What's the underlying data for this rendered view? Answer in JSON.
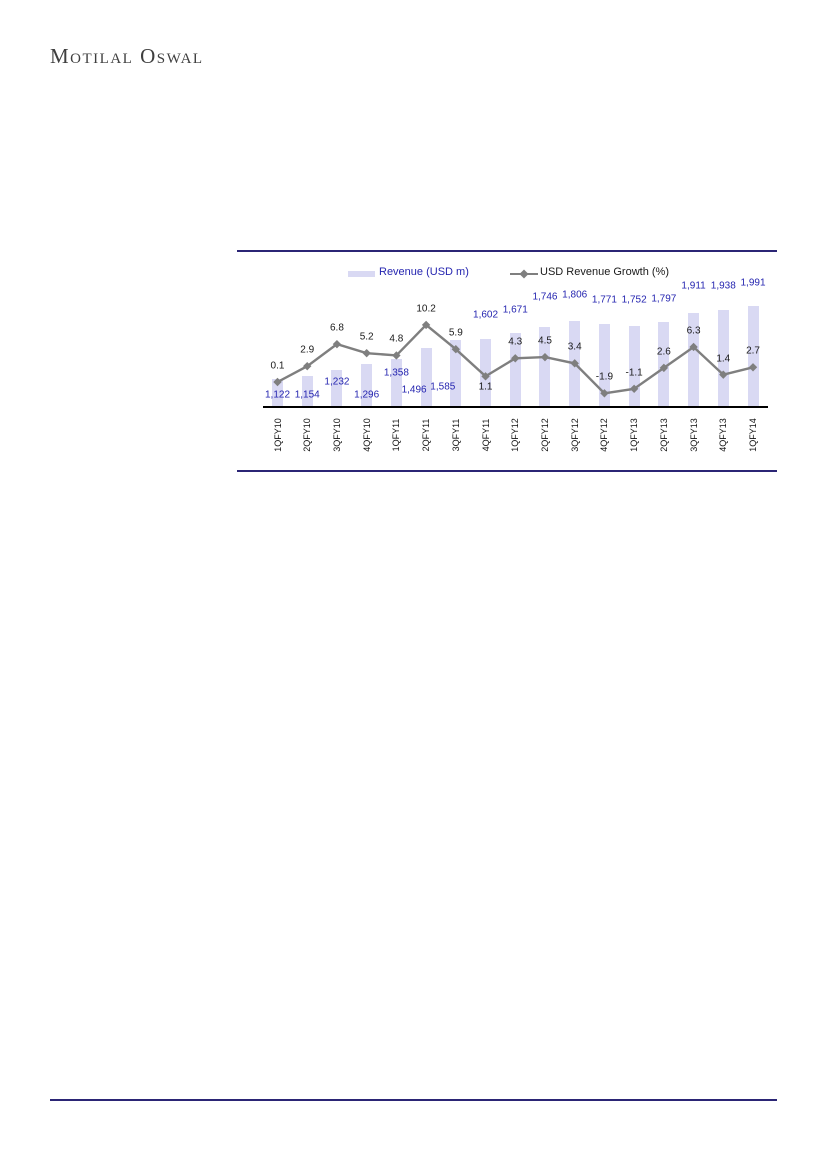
{
  "page": {
    "logo_text": "Motilal Oswal"
  },
  "chart": {
    "legend": {
      "revenue_label": "Revenue (USD m)",
      "growth_label": "USD Revenue Growth (%)"
    },
    "colors": {
      "bar_fill": "#d9d9f3",
      "bar_label": "#2525b0",
      "line": "#7f7f7f",
      "line_label": "#1a1a1a",
      "rule": "#2b2575",
      "axis_line": "#000000",
      "tick_label": "#111111"
    }
  },
  "chart_data": {
    "type": "bar",
    "subtype": "bar-line-combo",
    "title": "",
    "xlabel": "",
    "ylabel": "",
    "legend_position": "top",
    "value_axis_visible": false,
    "categories": [
      "1QFY10",
      "2QFY10",
      "3QFY10",
      "4QFY10",
      "1QFY11",
      "2QFY11",
      "3QFY11",
      "4QFY11",
      "1QFY12",
      "2QFY12",
      "3QFY12",
      "4QFY12",
      "1QFY13",
      "2QFY13",
      "3QFY13",
      "4QFY13",
      "1QFY14"
    ],
    "series": [
      {
        "name": "Revenue (USD m)",
        "type": "bar",
        "values": [
          1122,
          1154,
          1232,
          1296,
          1358,
          1496,
          1585,
          1602,
          1671,
          1746,
          1806,
          1771,
          1752,
          1797,
          1911,
          1938,
          1991
        ],
        "labels": [
          "1,122",
          "1,154",
          "1,232",
          "1,296",
          "1,358",
          "1,496",
          "1,585",
          "1,602",
          "1,671",
          "1,746",
          "1,806",
          "1,771",
          "1,752",
          "1,797",
          "1,911",
          "1,938",
          "1,991"
        ]
      },
      {
        "name": "USD Revenue Growth (%)",
        "type": "line",
        "values": [
          0.1,
          2.9,
          6.8,
          5.2,
          4.8,
          10.2,
          5.9,
          1.1,
          4.3,
          4.5,
          3.4,
          -1.9,
          -1.1,
          2.6,
          6.3,
          1.4,
          2.7
        ],
        "labels": [
          "0.1",
          "2.9",
          "6.8",
          "5.2",
          "4.8",
          "10.2",
          "5.9",
          "1.1",
          "4.3",
          "4.5",
          "3.4",
          "-1.9",
          "-1.1",
          "2.6",
          "6.3",
          "1.4",
          "2.7"
        ]
      }
    ]
  }
}
